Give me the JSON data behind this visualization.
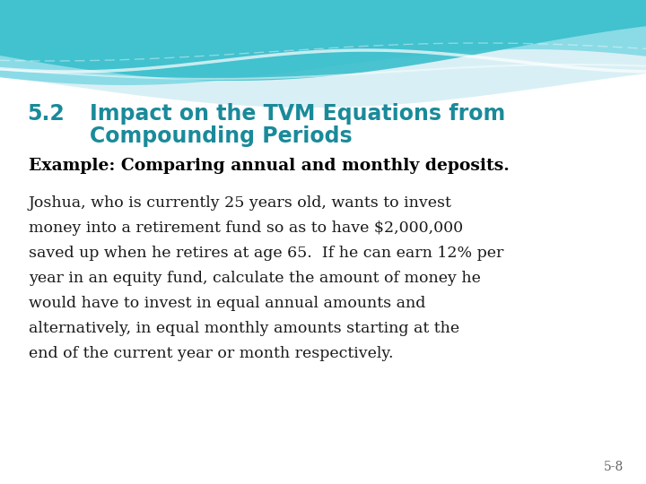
{
  "bg_color": "#ffffff",
  "title_number": "5.2",
  "title_text_line1": "Impact on the TVM Equations from",
  "title_text_line2": "Compounding Periods",
  "title_color": "#1a8a9a",
  "example_heading": "Example: Comparing annual and monthly deposits.",
  "example_heading_color": "#000000",
  "body_lines": [
    "Joshua, who is currently 25 years old, wants to invest",
    "money into a retirement fund so as to have $2,000,000",
    "saved up when he retires at age 65.  If he can earn 12% per",
    "year in an equity fund, calculate the amount of money he",
    "would have to invest in equal annual amounts and",
    "alternatively, in equal monthly amounts starting at the",
    "end of the current year or month respectively."
  ],
  "body_color": "#1a1a1a",
  "footer_text": "5-8",
  "footer_color": "#666666",
  "wave_deep_teal": "#3bbfcc",
  "wave_mid_teal": "#7dd8e4",
  "wave_light_teal": "#b0e8f0",
  "wave_pale": "#d8f0f5"
}
